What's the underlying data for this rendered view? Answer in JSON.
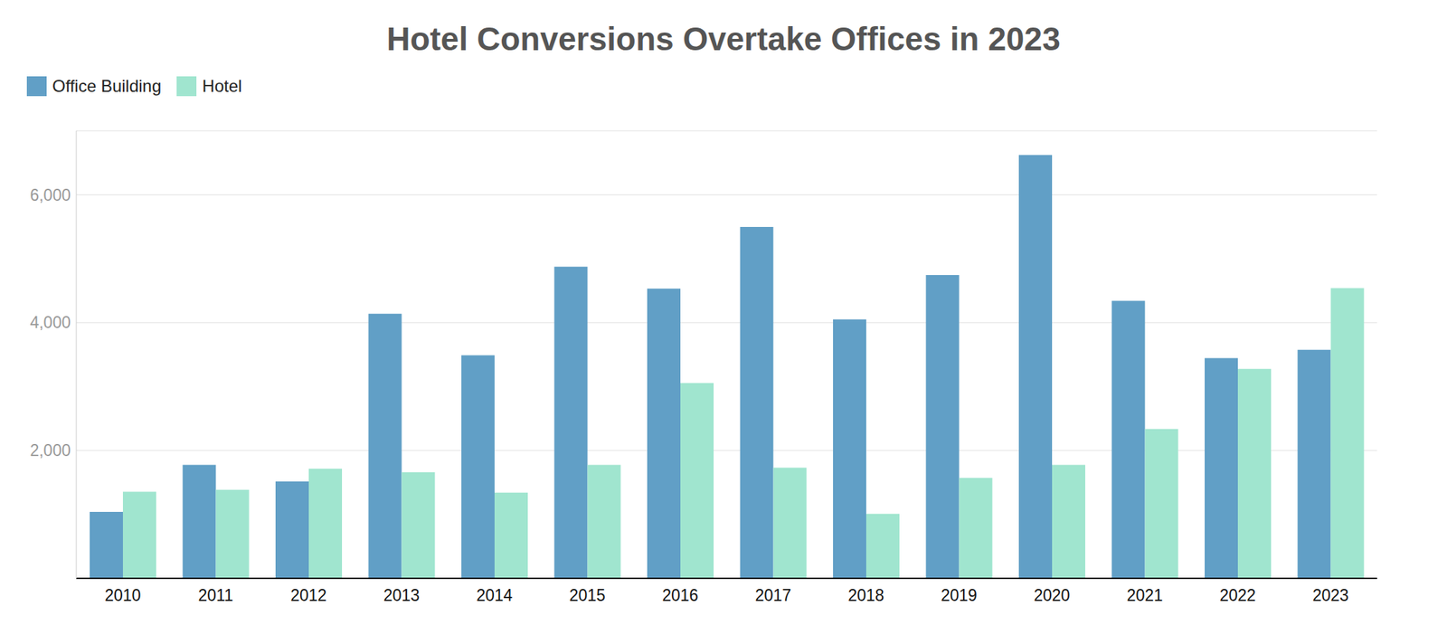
{
  "chart_data": {
    "type": "bar",
    "title": "Hotel Conversions Overtake Offices in 2023",
    "categories": [
      "2010",
      "2011",
      "2012",
      "2013",
      "2014",
      "2015",
      "2016",
      "2017",
      "2018",
      "2019",
      "2020",
      "2021",
      "2022",
      "2023"
    ],
    "series": [
      {
        "name": "Office Building",
        "color": "#619fc6",
        "values": [
          1040,
          1775,
          1515,
          4140,
          3490,
          4875,
          4530,
          5495,
          4050,
          4745,
          6620,
          4340,
          3445,
          3575
        ]
      },
      {
        "name": "Hotel",
        "color": "#a0e5cf",
        "values": [
          1355,
          1385,
          1715,
          1660,
          1340,
          1775,
          3055,
          1730,
          1010,
          1570,
          1775,
          2335,
          3275,
          4540
        ]
      }
    ],
    "ylim": [
      0,
      7000
    ],
    "yticks": [
      {
        "value": 2000,
        "label": "2,000"
      },
      {
        "value": 4000,
        "label": "4,000"
      },
      {
        "value": 6000,
        "label": "6,000"
      }
    ],
    "grid": true,
    "legend": "top-left"
  }
}
